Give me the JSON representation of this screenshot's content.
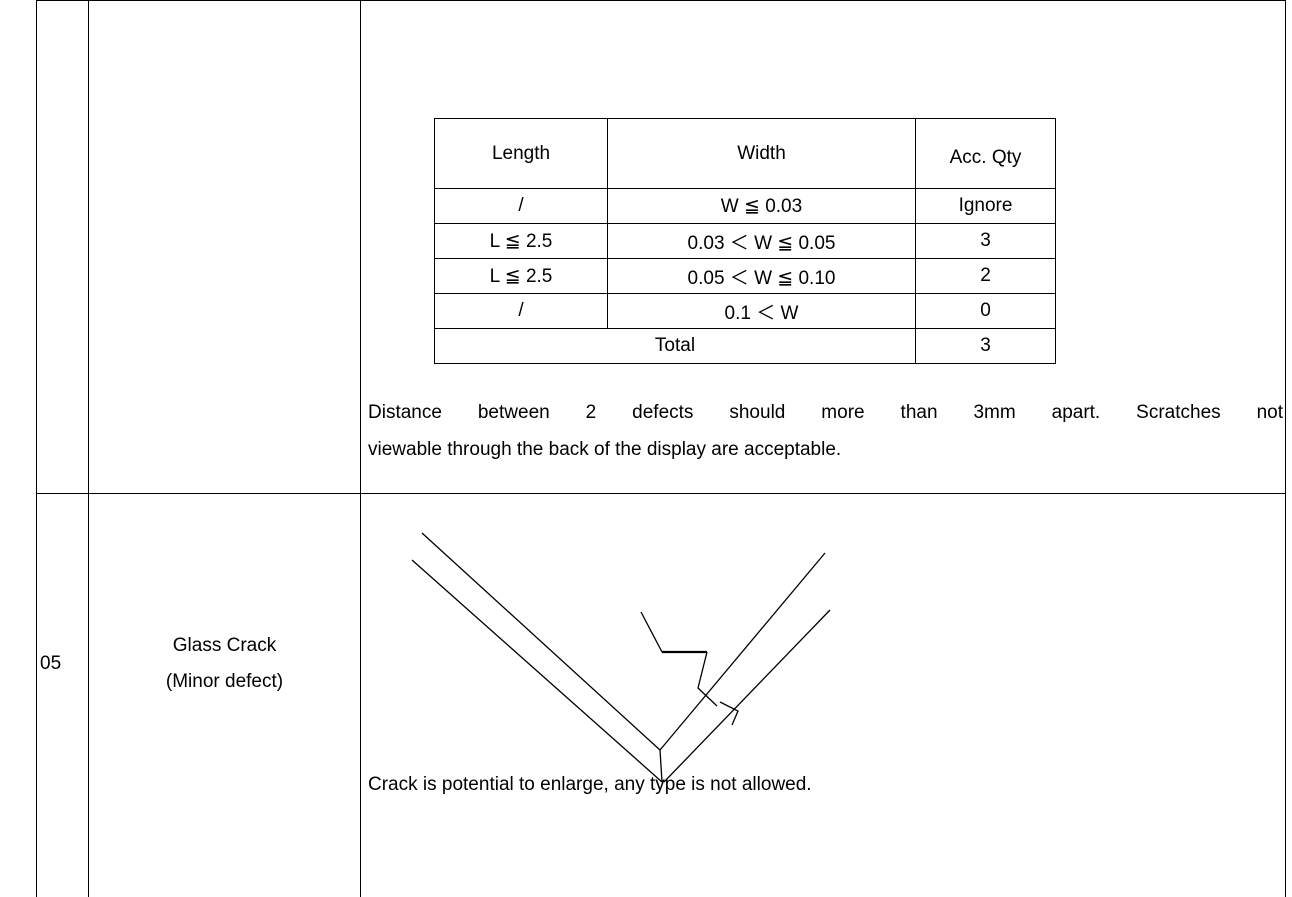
{
  "table": {
    "rows": [
      {
        "criteria": {
          "spec_table": {
            "header": [
              "Length",
              "Width",
              "Acc. Qty"
            ],
            "rows": [
              [
                "/",
                "W ≦ 0.03",
                "Ignore"
              ],
              [
                "L ≦ 2.5",
                "0.03 ＜ W ≦ 0.05",
                "3"
              ],
              [
                "L ≦ 2.5",
                "0.05 ＜ W ≦ 0.10",
                "2"
              ],
              [
                "/",
                "0.1 ＜ W",
                "0"
              ]
            ],
            "total": [
              "Total",
              "3"
            ]
          },
          "note_lines": [
            "Distance between 2 defects should more than 3mm apart. Scratches not",
            "viewable through the back of the display are acceptable."
          ]
        }
      },
      {
        "no": "05",
        "item": [
          "Glass Crack",
          "(Minor defect)"
        ],
        "criteria": {
          "note": "Crack is potential to enlarge, any type is not allowed."
        }
      }
    ]
  }
}
